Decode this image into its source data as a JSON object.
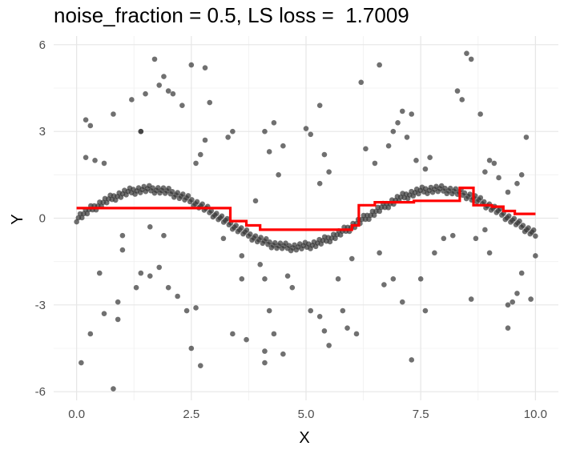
{
  "chart_data": {
    "type": "scatter",
    "title": "noise_fraction = 0.5, LS loss =  1.7009",
    "xlabel": "X",
    "ylabel": "Y",
    "xlim": [
      -0.5,
      10.5
    ],
    "ylim": [
      -6.3,
      6.3
    ],
    "x_ticks": [
      0,
      2.5,
      5,
      7.5,
      10
    ],
    "x_tick_labels": [
      "0.0",
      "2.5",
      "5.0",
      "7.5",
      "10.0"
    ],
    "y_ticks": [
      -6,
      -3,
      0,
      3,
      6
    ],
    "y_tick_labels": [
      "-6",
      "-3",
      "0",
      "3",
      "6"
    ],
    "grid": true,
    "legend": "none",
    "point_color": "#333333",
    "fit_color": "#ff0000",
    "noise_points": [
      [
        0.2,
        2.1
      ],
      [
        0.2,
        3.4
      ],
      [
        0.3,
        3.2
      ],
      [
        0.4,
        2.0
      ],
      [
        0.6,
        1.9
      ],
      [
        0.8,
        3.6
      ],
      [
        0.9,
        -2.9
      ],
      [
        0.9,
        -3.5
      ],
      [
        0.1,
        -5.0
      ],
      [
        0.3,
        -4.0
      ],
      [
        0.8,
        -5.9
      ],
      [
        0.6,
        -3.3
      ],
      [
        0.5,
        -1.9
      ],
      [
        1.0,
        -0.6
      ],
      [
        1.0,
        -1.1
      ],
      [
        1.2,
        4.1
      ],
      [
        1.4,
        3.0
      ],
      [
        1.4,
        3.0
      ],
      [
        1.5,
        4.3
      ],
      [
        1.7,
        5.5
      ],
      [
        1.8,
        4.6
      ],
      [
        1.9,
        4.9
      ],
      [
        2.0,
        4.4
      ],
      [
        2.1,
        4.3
      ],
      [
        2.3,
        3.9
      ],
      [
        2.5,
        5.3
      ],
      [
        2.8,
        5.2
      ],
      [
        2.7,
        2.2
      ],
      [
        2.6,
        1.9
      ],
      [
        2.8,
        2.7
      ],
      [
        2.9,
        4.0
      ],
      [
        1.3,
        -2.4
      ],
      [
        1.4,
        -1.9
      ],
      [
        1.6,
        -2.0
      ],
      [
        1.8,
        -1.7
      ],
      [
        2.0,
        -2.4
      ],
      [
        2.2,
        -2.7
      ],
      [
        2.4,
        -3.2
      ],
      [
        2.5,
        -4.5
      ],
      [
        2.7,
        -5.1
      ],
      [
        2.6,
        -3.1
      ],
      [
        1.9,
        -0.6
      ],
      [
        1.6,
        -0.3
      ],
      [
        3.3,
        2.8
      ],
      [
        3.4,
        3.0
      ],
      [
        3.6,
        -2.1
      ],
      [
        3.6,
        -1.3
      ],
      [
        3.4,
        -4.0
      ],
      [
        3.7,
        -4.2
      ],
      [
        3.2,
        -0.7
      ],
      [
        4.1,
        3.0
      ],
      [
        4.2,
        2.3
      ],
      [
        4.3,
        3.3
      ],
      [
        4.5,
        2.5
      ],
      [
        4.4,
        1.5
      ],
      [
        3.9,
        0.6
      ],
      [
        4.0,
        -1.6
      ],
      [
        4.1,
        -2.1
      ],
      [
        4.2,
        -3.2
      ],
      [
        4.1,
        -4.6
      ],
      [
        4.1,
        -5.0
      ],
      [
        4.3,
        -4.0
      ],
      [
        4.5,
        -4.7
      ],
      [
        4.7,
        -2.4
      ],
      [
        4.6,
        -2.0
      ],
      [
        5.0,
        3.1
      ],
      [
        5.1,
        2.9
      ],
      [
        5.3,
        3.9
      ],
      [
        5.4,
        2.2
      ],
      [
        5.5,
        1.6
      ],
      [
        5.3,
        1.2
      ],
      [
        5.1,
        -3.2
      ],
      [
        5.3,
        -3.4
      ],
      [
        5.4,
        -3.9
      ],
      [
        5.5,
        -4.4
      ],
      [
        5.7,
        -2.1
      ],
      [
        5.8,
        -3.2
      ],
      [
        5.9,
        -3.8
      ],
      [
        6.0,
        -1.4
      ],
      [
        6.1,
        -4.0
      ],
      [
        6.2,
        4.7
      ],
      [
        6.3,
        2.4
      ],
      [
        6.5,
        1.9
      ],
      [
        6.6,
        5.3
      ],
      [
        6.8,
        2.5
      ],
      [
        6.9,
        3.0
      ],
      [
        7.0,
        3.3
      ],
      [
        7.1,
        3.7
      ],
      [
        7.2,
        2.8
      ],
      [
        7.4,
        2.0
      ],
      [
        7.6,
        1.7
      ],
      [
        7.7,
        2.1
      ],
      [
        7.3,
        3.6
      ],
      [
        7.5,
        -2.1
      ],
      [
        7.6,
        -3.2
      ],
      [
        7.3,
        -4.9
      ],
      [
        7.1,
        -2.9
      ],
      [
        6.7,
        -2.3
      ],
      [
        6.9,
        -2.1
      ],
      [
        6.6,
        -1.2
      ],
      [
        7.8,
        -1.2
      ],
      [
        8.0,
        -0.7
      ],
      [
        8.2,
        -0.6
      ],
      [
        8.3,
        4.4
      ],
      [
        8.4,
        4.1
      ],
      [
        8.5,
        5.7
      ],
      [
        8.6,
        5.5
      ],
      [
        8.8,
        3.6
      ],
      [
        8.9,
        1.6
      ],
      [
        9.0,
        2.0
      ],
      [
        9.1,
        1.9
      ],
      [
        9.2,
        1.4
      ],
      [
        9.4,
        0.9
      ],
      [
        9.6,
        1.2
      ],
      [
        9.7,
        1.5
      ],
      [
        9.8,
        2.8
      ],
      [
        9.7,
        -1.9
      ],
      [
        9.6,
        -2.6
      ],
      [
        9.4,
        -3.0
      ],
      [
        9.5,
        -2.9
      ],
      [
        9.4,
        -3.8
      ],
      [
        9.9,
        -2.8
      ],
      [
        10.0,
        -1.3
      ],
      [
        8.7,
        -0.7
      ],
      [
        8.9,
        -0.4
      ],
      [
        8.6,
        -2.8
      ],
      [
        9.0,
        -1.2
      ]
    ],
    "fit_line": [
      [
        0.0,
        0.35
      ],
      [
        3.35,
        0.35
      ],
      [
        3.35,
        -0.1
      ],
      [
        3.7,
        -0.1
      ],
      [
        3.7,
        -0.25
      ],
      [
        4.0,
        -0.25
      ],
      [
        4.0,
        -0.4
      ],
      [
        6.0,
        -0.4
      ],
      [
        6.0,
        -0.25
      ],
      [
        6.15,
        -0.25
      ],
      [
        6.15,
        0.45
      ],
      [
        6.5,
        0.45
      ],
      [
        6.5,
        0.55
      ],
      [
        7.35,
        0.55
      ],
      [
        7.35,
        0.6
      ],
      [
        8.35,
        0.6
      ],
      [
        8.35,
        1.05
      ],
      [
        8.65,
        1.05
      ],
      [
        8.65,
        0.45
      ],
      [
        9.05,
        0.45
      ],
      [
        9.05,
        0.4
      ],
      [
        9.3,
        0.4
      ],
      [
        9.3,
        0.25
      ],
      [
        9.55,
        0.25
      ],
      [
        9.55,
        0.15
      ],
      [
        10.0,
        0.15
      ]
    ]
  }
}
